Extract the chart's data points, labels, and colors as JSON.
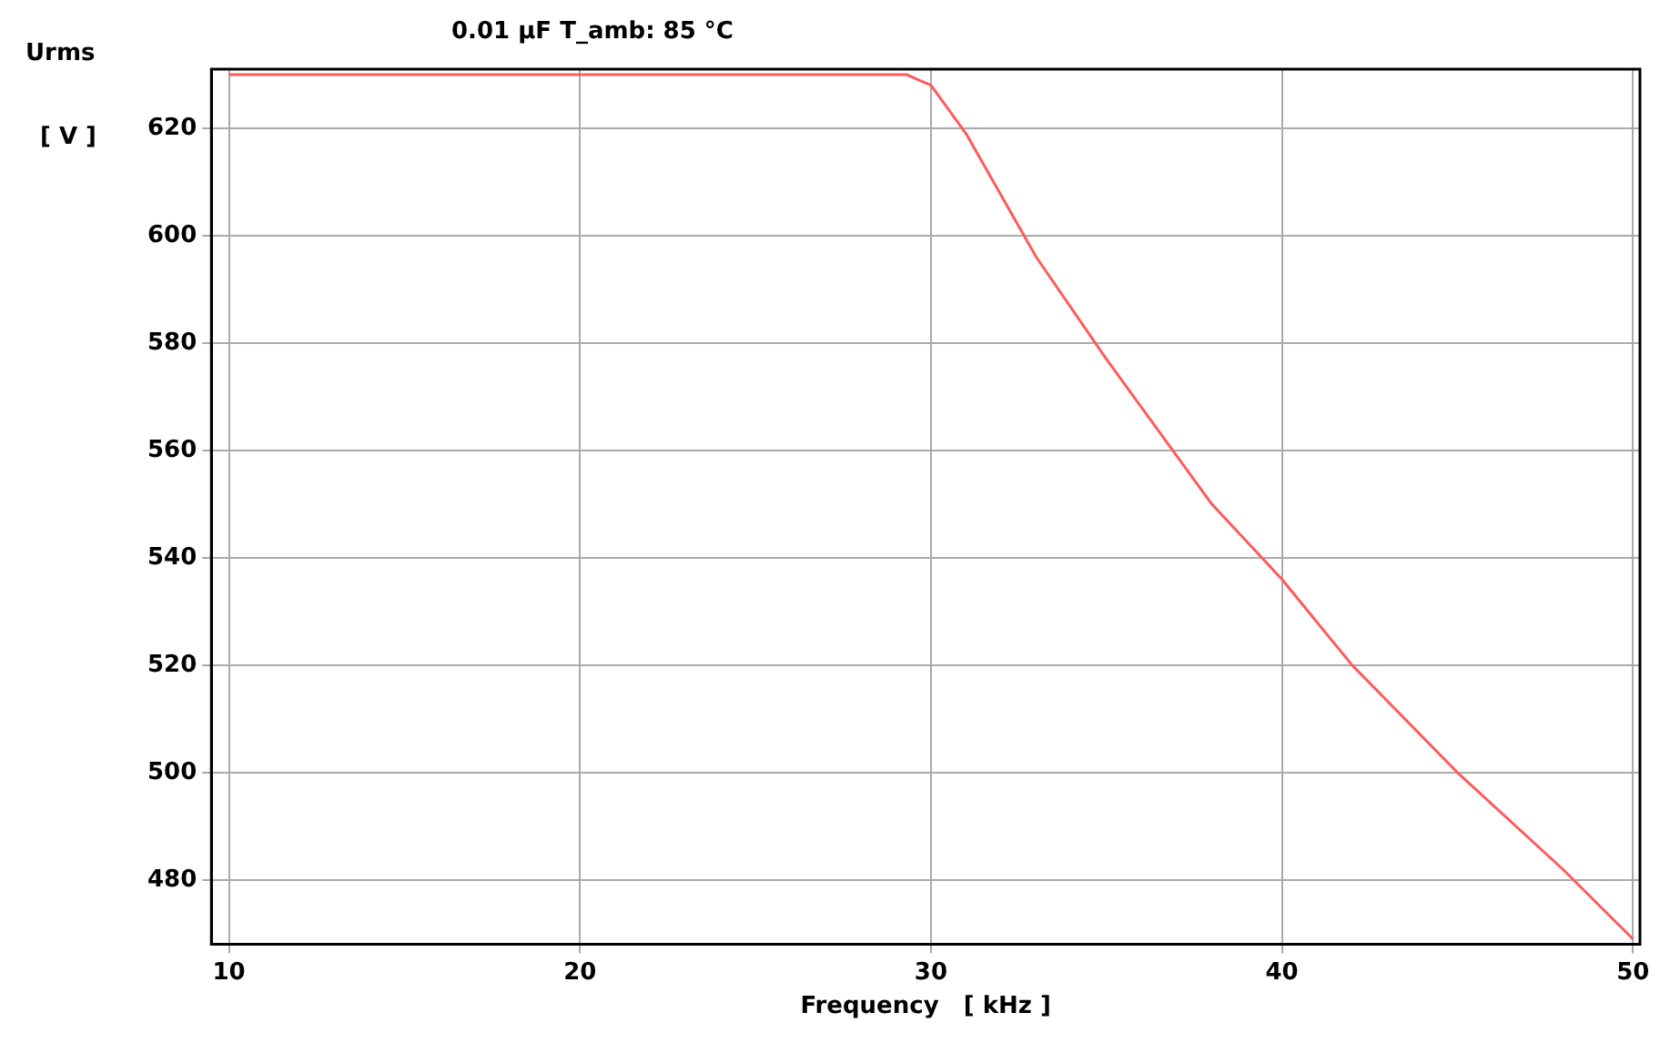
{
  "chart_data": {
    "type": "line",
    "title": "0.01 µF   T_amb: 85 °C",
    "xlabel": "Frequency   [ kHz ]",
    "ylabel": "Urms",
    "annotations": [
      "[ V ]"
    ],
    "x": [
      10,
      29.3,
      30,
      31,
      33,
      35,
      38,
      40,
      42,
      45,
      48,
      50
    ],
    "series": [
      {
        "color": "#ff5a5a",
        "values": [
          630,
          630,
          628,
          619,
          596,
          577,
          550,
          536,
          520,
          500,
          482,
          469
        ]
      }
    ],
    "xlim": [
      9.5,
      50.2
    ],
    "ylim": [
      468,
      631
    ],
    "xticks": [
      10,
      20,
      30,
      40,
      50
    ],
    "yticks": [
      480,
      500,
      520,
      540,
      560,
      580,
      600,
      620
    ],
    "grid": true,
    "legend": false,
    "marker": "none",
    "line_style": "solid"
  }
}
